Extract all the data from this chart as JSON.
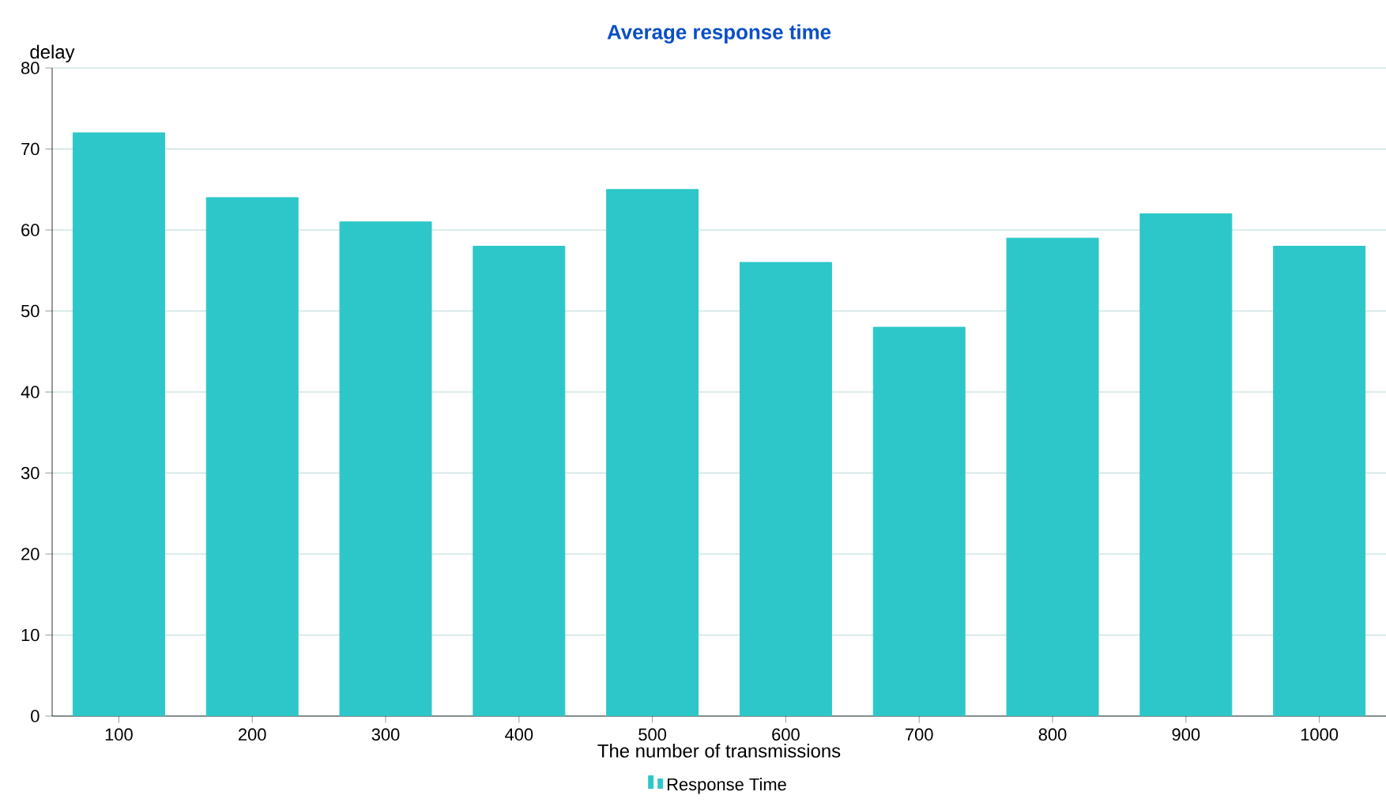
{
  "chart_data": {
    "type": "bar",
    "title": "Average response time",
    "xlabel": "The number of transmissions",
    "ylabel": "delay",
    "categories": [
      "100",
      "200",
      "300",
      "400",
      "500",
      "600",
      "700",
      "800",
      "900",
      "1000"
    ],
    "series": [
      {
        "name": "Response Time",
        "color": "#2ec7c9",
        "values": [
          72,
          64,
          61,
          58,
          65,
          56,
          48,
          59,
          62,
          58
        ]
      }
    ],
    "ylim": [
      0,
      80
    ],
    "yticks": [
      0,
      10,
      20,
      30,
      40,
      50,
      60,
      70,
      80
    ],
    "grid": "y",
    "legend": "bottom"
  }
}
